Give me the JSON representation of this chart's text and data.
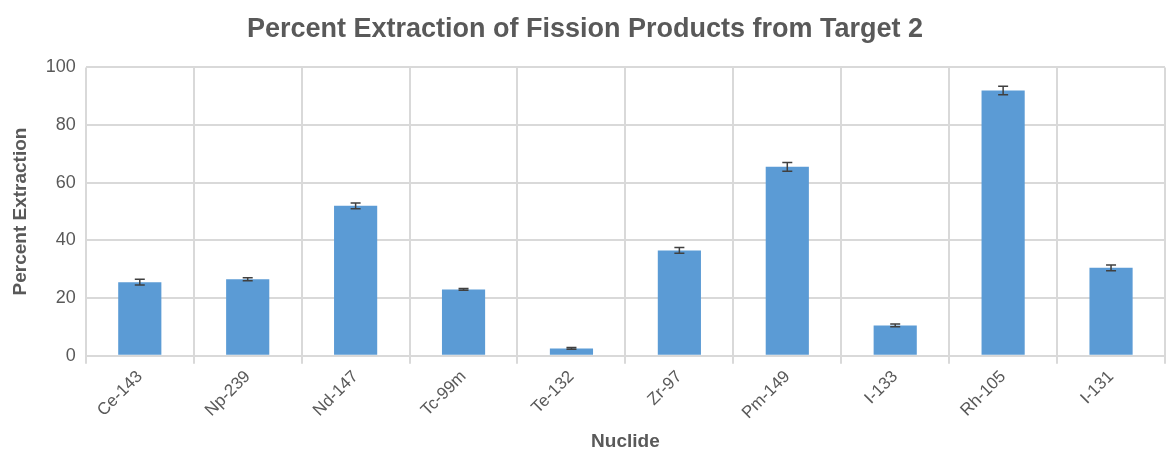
{
  "chart_data": {
    "type": "bar",
    "title": "Percent Extraction of Fission Products from Target 2",
    "xlabel": "Nuclide",
    "ylabel": "Percent Extraction",
    "categories": [
      "Ce-143",
      "Np-239",
      "Nd-147",
      "Tc-99m",
      "Te-132",
      "Zr-97",
      "Pm-149",
      "I-133",
      "Rh-105",
      "I-131"
    ],
    "values": [
      25.5,
      26.5,
      52,
      23,
      2.5,
      36.5,
      65.5,
      10.5,
      92,
      30.5
    ],
    "errors": [
      1,
      0.5,
      1,
      0.3,
      0.3,
      1,
      1.5,
      0.5,
      1.5,
      1
    ],
    "color": "#5b9bd5",
    "ylim": [
      0,
      100
    ],
    "yticks": [
      0,
      20,
      40,
      60,
      80,
      100
    ],
    "grid": true
  }
}
